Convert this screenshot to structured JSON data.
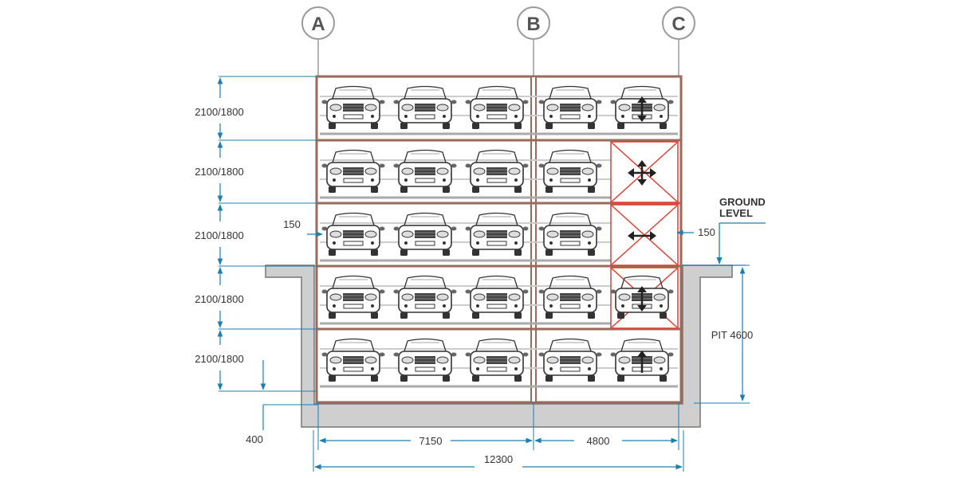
{
  "grid_axes": [
    "A",
    "B",
    "C"
  ],
  "level_heights": [
    "2100/1800",
    "2100/1800",
    "2100/1800",
    "2100/1800",
    "2100/1800"
  ],
  "dims": {
    "side_gap_left": "150",
    "side_gap_right": "150",
    "ground_level": [
      "GROUND",
      "LEVEL"
    ],
    "pit": "PIT 4600",
    "slab": "400",
    "bay_left": "7150",
    "bay_right": "4800",
    "overall": "12300"
  },
  "colors": {
    "frame": "#9a6b5b",
    "dimension": "#1d7fb0",
    "empty_space": "#e33b2e",
    "concrete": "#cfcfcf",
    "grid_circle": "#9a9a9a",
    "arrow": "#222222"
  },
  "levels": [
    [
      "car",
      "car",
      "car",
      "car",
      "car-arrow-updown"
    ],
    [
      "car",
      "car",
      "car",
      "car",
      "empty-arrow-4way"
    ],
    [
      "car",
      "car",
      "car",
      "car",
      "empty-arrow-leftright"
    ],
    [
      "car",
      "car",
      "car",
      "car",
      "car-empty-arrow-updown"
    ],
    [
      "car",
      "car",
      "car",
      "car",
      "car-arrow-up"
    ]
  ]
}
